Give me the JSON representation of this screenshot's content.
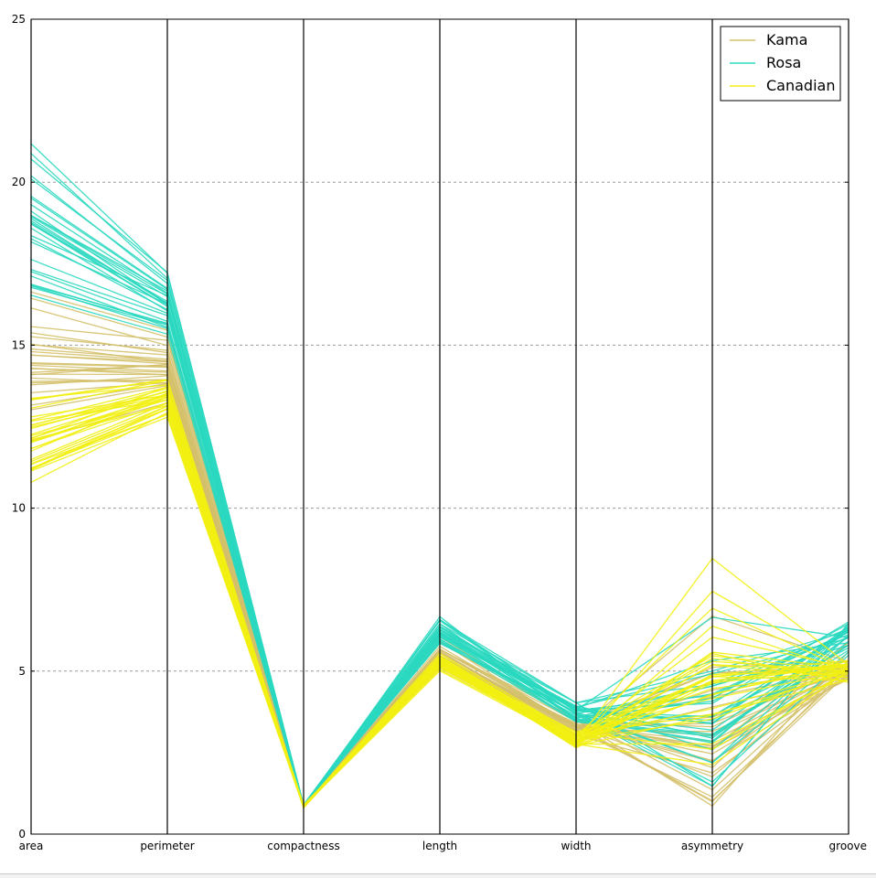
{
  "chart_data": {
    "type": "parallel_coordinates",
    "title": "",
    "xlabel": "",
    "ylabel": "",
    "axes": [
      "area",
      "perimeter",
      "compactness",
      "length",
      "width",
      "asymmetry",
      "groove"
    ],
    "ylim": [
      0,
      25
    ],
    "yticks": [
      0,
      5,
      10,
      15,
      20,
      25
    ],
    "grid": true,
    "legend": "top-right",
    "series": [
      {
        "name": "Kama",
        "color": "#d4c06a",
        "lines": [
          [
            15.26,
            14.84,
            0.871,
            5.76,
            3.31,
            2.22,
            5.22
          ],
          [
            14.88,
            14.57,
            0.881,
            5.55,
            3.33,
            1.02,
            4.96
          ],
          [
            14.29,
            14.09,
            0.905,
            5.29,
            3.34,
            2.7,
            4.83
          ],
          [
            13.84,
            13.94,
            0.895,
            5.32,
            3.38,
            2.26,
            4.81
          ],
          [
            16.14,
            14.99,
            0.903,
            5.66,
            3.56,
            1.36,
            5.18
          ],
          [
            14.38,
            14.21,
            0.895,
            5.39,
            3.31,
            2.46,
            4.96
          ],
          [
            14.69,
            14.49,
            0.88,
            5.56,
            3.26,
            3.59,
            5.22
          ],
          [
            14.11,
            14.1,
            0.892,
            5.42,
            3.3,
            2.7,
            5.0
          ],
          [
            16.63,
            15.46,
            0.875,
            6.05,
            3.46,
            2.04,
            5.88
          ],
          [
            14.8,
            14.52,
            0.883,
            5.67,
            3.29,
            1.0,
            5.14
          ],
          [
            13.54,
            13.85,
            0.887,
            5.35,
            3.16,
            3.15,
            5.0
          ],
          [
            13.99,
            13.83,
            0.919,
            5.12,
            3.38,
            2.61,
            4.76
          ],
          [
            13.78,
            14.06,
            0.876,
            5.48,
            3.16,
            5.12,
            5.28
          ],
          [
            13.89,
            13.94,
            0.898,
            5.31,
            3.27,
            3.4,
            5.05
          ],
          [
            15.01,
            14.7,
            0.873,
            5.68,
            3.32,
            1.76,
            5.31
          ],
          [
            14.43,
            14.32,
            0.884,
            5.43,
            3.29,
            2.85,
            5.06
          ],
          [
            13.16,
            13.82,
            0.865,
            5.41,
            3.04,
            1.88,
            4.9
          ],
          [
            14.7,
            14.43,
            0.887,
            5.56,
            3.25,
            4.95,
            5.14
          ],
          [
            15.38,
            14.77,
            0.886,
            5.66,
            3.46,
            3.29,
            5.23
          ],
          [
            13.02,
            13.76,
            0.865,
            5.32,
            3.02,
            4.42,
            5.1
          ],
          [
            14.09,
            14.41,
            0.853,
            5.62,
            3.18,
            6.69,
            5.28
          ],
          [
            15.03,
            14.48,
            0.901,
            5.42,
            3.4,
            4.95,
            4.98
          ],
          [
            14.46,
            14.35,
            0.883,
            5.48,
            3.32,
            4.21,
            5.06
          ],
          [
            12.08,
            13.23,
            0.867,
            5.1,
            2.88,
            3.9,
            4.86
          ],
          [
            14.28,
            14.17,
            0.894,
            5.4,
            3.29,
            3.03,
            5.04
          ],
          [
            15.57,
            15.15,
            0.853,
            5.92,
            3.23,
            2.64,
            5.88
          ],
          [
            14.16,
            14.4,
            0.858,
            5.59,
            3.2,
            1.14,
            5.03
          ],
          [
            16.44,
            15.25,
            0.888,
            5.88,
            3.5,
            0.86,
            5.6
          ]
        ]
      },
      {
        "name": "Rosa",
        "color": "#2ad8c0",
        "lines": [
          [
            17.63,
            15.98,
            0.867,
            6.19,
            3.56,
            4.08,
            6.06
          ],
          [
            16.84,
            15.67,
            0.862,
            5.99,
            3.48,
            3.64,
            5.71
          ],
          [
            17.26,
            15.73,
            0.876,
            5.98,
            3.59,
            4.54,
            5.79
          ],
          [
            19.11,
            16.26,
            0.908,
            6.15,
            3.93,
            2.94,
            6.06
          ],
          [
            16.82,
            15.51,
            0.879,
            5.93,
            3.71,
            1.6,
            5.49
          ],
          [
            16.77,
            15.62,
            0.864,
            5.93,
            3.44,
            3.0,
            5.8
          ],
          [
            17.32,
            15.91,
            0.86,
            6.06,
            3.56,
            4.3,
            6.2
          ],
          [
            20.71,
            17.23,
            0.877,
            6.58,
            3.81,
            4.01,
            6.51
          ],
          [
            18.94,
            16.49,
            0.876,
            6.29,
            3.77,
            3.6,
            6.27
          ],
          [
            17.12,
            15.55,
            0.89,
            5.85,
            3.75,
            2.19,
            5.58
          ],
          [
            16.53,
            15.34,
            0.882,
            5.88,
            3.64,
            3.05,
            5.64
          ],
          [
            18.72,
            16.19,
            0.897,
            6.11,
            3.9,
            4.92,
            6.01
          ],
          [
            20.2,
            16.89,
            0.889,
            6.28,
            4.03,
            5.0,
            6.24
          ],
          [
            19.57,
            16.74,
            0.878,
            6.38,
            3.87,
            3.38,
            6.32
          ],
          [
            19.51,
            16.71,
            0.878,
            6.36,
            3.8,
            4.25,
            6.19
          ],
          [
            18.27,
            16.09,
            0.887,
            6.17,
            3.69,
            3.19,
            6.06
          ],
          [
            18.88,
            16.26,
            0.897,
            6.08,
            3.88,
            2.58,
            5.92
          ],
          [
            18.98,
            16.66,
            0.859,
            6.55,
            3.67,
            1.47,
            6.45
          ],
          [
            21.18,
            17.21,
            0.899,
            6.57,
            4.03,
            1.47,
            6.47
          ],
          [
            20.88,
            17.05,
            0.903,
            6.45,
            4.03,
            4.59,
            6.31
          ],
          [
            20.1,
            16.99,
            0.875,
            6.58,
            3.79,
            3.41,
            6.37
          ],
          [
            18.76,
            16.2,
            0.898,
            6.17,
            3.8,
            6.65,
            6.03
          ],
          [
            18.81,
            16.29,
            0.891,
            6.27,
            3.69,
            4.54,
            6.12
          ],
          [
            18.59,
            16.05,
            0.906,
            6.04,
            3.86,
            5.32,
            5.87
          ],
          [
            18.36,
            16.52,
            0.845,
            6.67,
            3.49,
            4.17,
            6.45
          ],
          [
            16.87,
            15.65,
            0.865,
            6.14,
            3.46,
            3.06,
            5.8
          ],
          [
            19.31,
            16.59,
            0.882,
            6.34,
            3.81,
            3.48,
            6.23
          ],
          [
            18.98,
            16.57,
            0.869,
            6.45,
            3.55,
            2.8,
            6.37
          ],
          [
            18.17,
            16.26,
            0.864,
            6.27,
            3.51,
            2.85,
            6.27
          ],
          [
            18.72,
            16.34,
            0.881,
            6.22,
            3.68,
            2.19,
            6.1
          ]
        ]
      },
      {
        "name": "Canadian",
        "color": "#f2ef12",
        "lines": [
          [
            13.07,
            13.92,
            0.848,
            5.47,
            2.99,
            5.3,
            5.0
          ],
          [
            13.32,
            13.94,
            0.862,
            5.54,
            3.07,
            4.83,
            5.2
          ],
          [
            13.34,
            13.95,
            0.862,
            5.39,
            3.07,
            5.47,
            5.0
          ],
          [
            12.22,
            13.32,
            0.865,
            5.22,
            2.97,
            4.66,
            5.0
          ],
          [
            11.82,
            13.4,
            0.827,
            5.31,
            2.78,
            4.7,
            5.17
          ],
          [
            11.21,
            13.13,
            0.816,
            5.28,
            2.69,
            3.65,
            5.0
          ],
          [
            11.43,
            13.13,
            0.833,
            5.18,
            2.72,
            6.38,
            5.0
          ],
          [
            12.49,
            13.46,
            0.866,
            5.27,
            2.97,
            4.47,
            5.0
          ],
          [
            12.7,
            13.71,
            0.849,
            5.39,
            3.0,
            6.93,
            5.03
          ],
          [
            10.79,
            12.93,
            0.811,
            5.32,
            2.65,
            4.63,
            5.18
          ],
          [
            11.83,
            13.23,
            0.85,
            5.26,
            2.82,
            5.19,
            4.8
          ],
          [
            12.01,
            13.52,
            0.825,
            5.41,
            2.8,
            8.46,
            5.19
          ],
          [
            12.26,
            13.6,
            0.833,
            5.41,
            2.88,
            3.53,
            5.04
          ],
          [
            11.18,
            13.04,
            0.826,
            5.22,
            2.69,
            5.58,
            5.09
          ],
          [
            11.36,
            13.05,
            0.838,
            5.18,
            2.76,
            2.13,
            5.01
          ],
          [
            11.19,
            13.05,
            0.826,
            5.25,
            2.68,
            4.9,
            5.0
          ],
          [
            11.34,
            12.87,
            0.86,
            5.05,
            2.85,
            4.83,
            4.72
          ],
          [
            12.13,
            13.73,
            0.809,
            5.39,
            2.75,
            4.83,
            5.22
          ],
          [
            11.75,
            13.52,
            0.808,
            5.44,
            2.68,
            4.3,
            5.18
          ],
          [
            11.49,
            13.22,
            0.826,
            5.3,
            2.72,
            7.45,
            5.04
          ],
          [
            12.54,
            13.67,
            0.843,
            5.45,
            2.88,
            4.88,
            5.33
          ],
          [
            12.02,
            13.33,
            0.85,
            5.35,
            2.81,
            4.27,
            5.31
          ],
          [
            12.05,
            13.41,
            0.842,
            5.27,
            2.85,
            5.2,
            5.0
          ],
          [
            12.55,
            13.57,
            0.855,
            5.33,
            2.96,
            3.85,
            5.0
          ],
          [
            11.14,
            12.79,
            0.857,
            5.01,
            2.79,
            5.54,
            4.65
          ],
          [
            12.1,
            13.15,
            0.88,
            5.1,
            2.94,
            5.39,
            4.8
          ],
          [
            12.44,
            13.59,
            0.846,
            5.32,
            2.91,
            6.04,
            5.1
          ],
          [
            12.15,
            13.45,
            0.844,
            5.42,
            2.84,
            4.71,
            5.21
          ],
          [
            11.23,
            12.88,
            0.851,
            5.14,
            2.76,
            2.77,
            4.94
          ],
          [
            12.8,
            13.47,
            0.886,
            5.16,
            3.13,
            2.6,
            5.0
          ],
          [
            13.37,
            13.78,
            0.885,
            5.32,
            3.13,
            4.16,
            5.0
          ],
          [
            12.67,
            13.32,
            0.897,
            5.15,
            3.05,
            3.68,
            4.73
          ]
        ]
      }
    ]
  }
}
